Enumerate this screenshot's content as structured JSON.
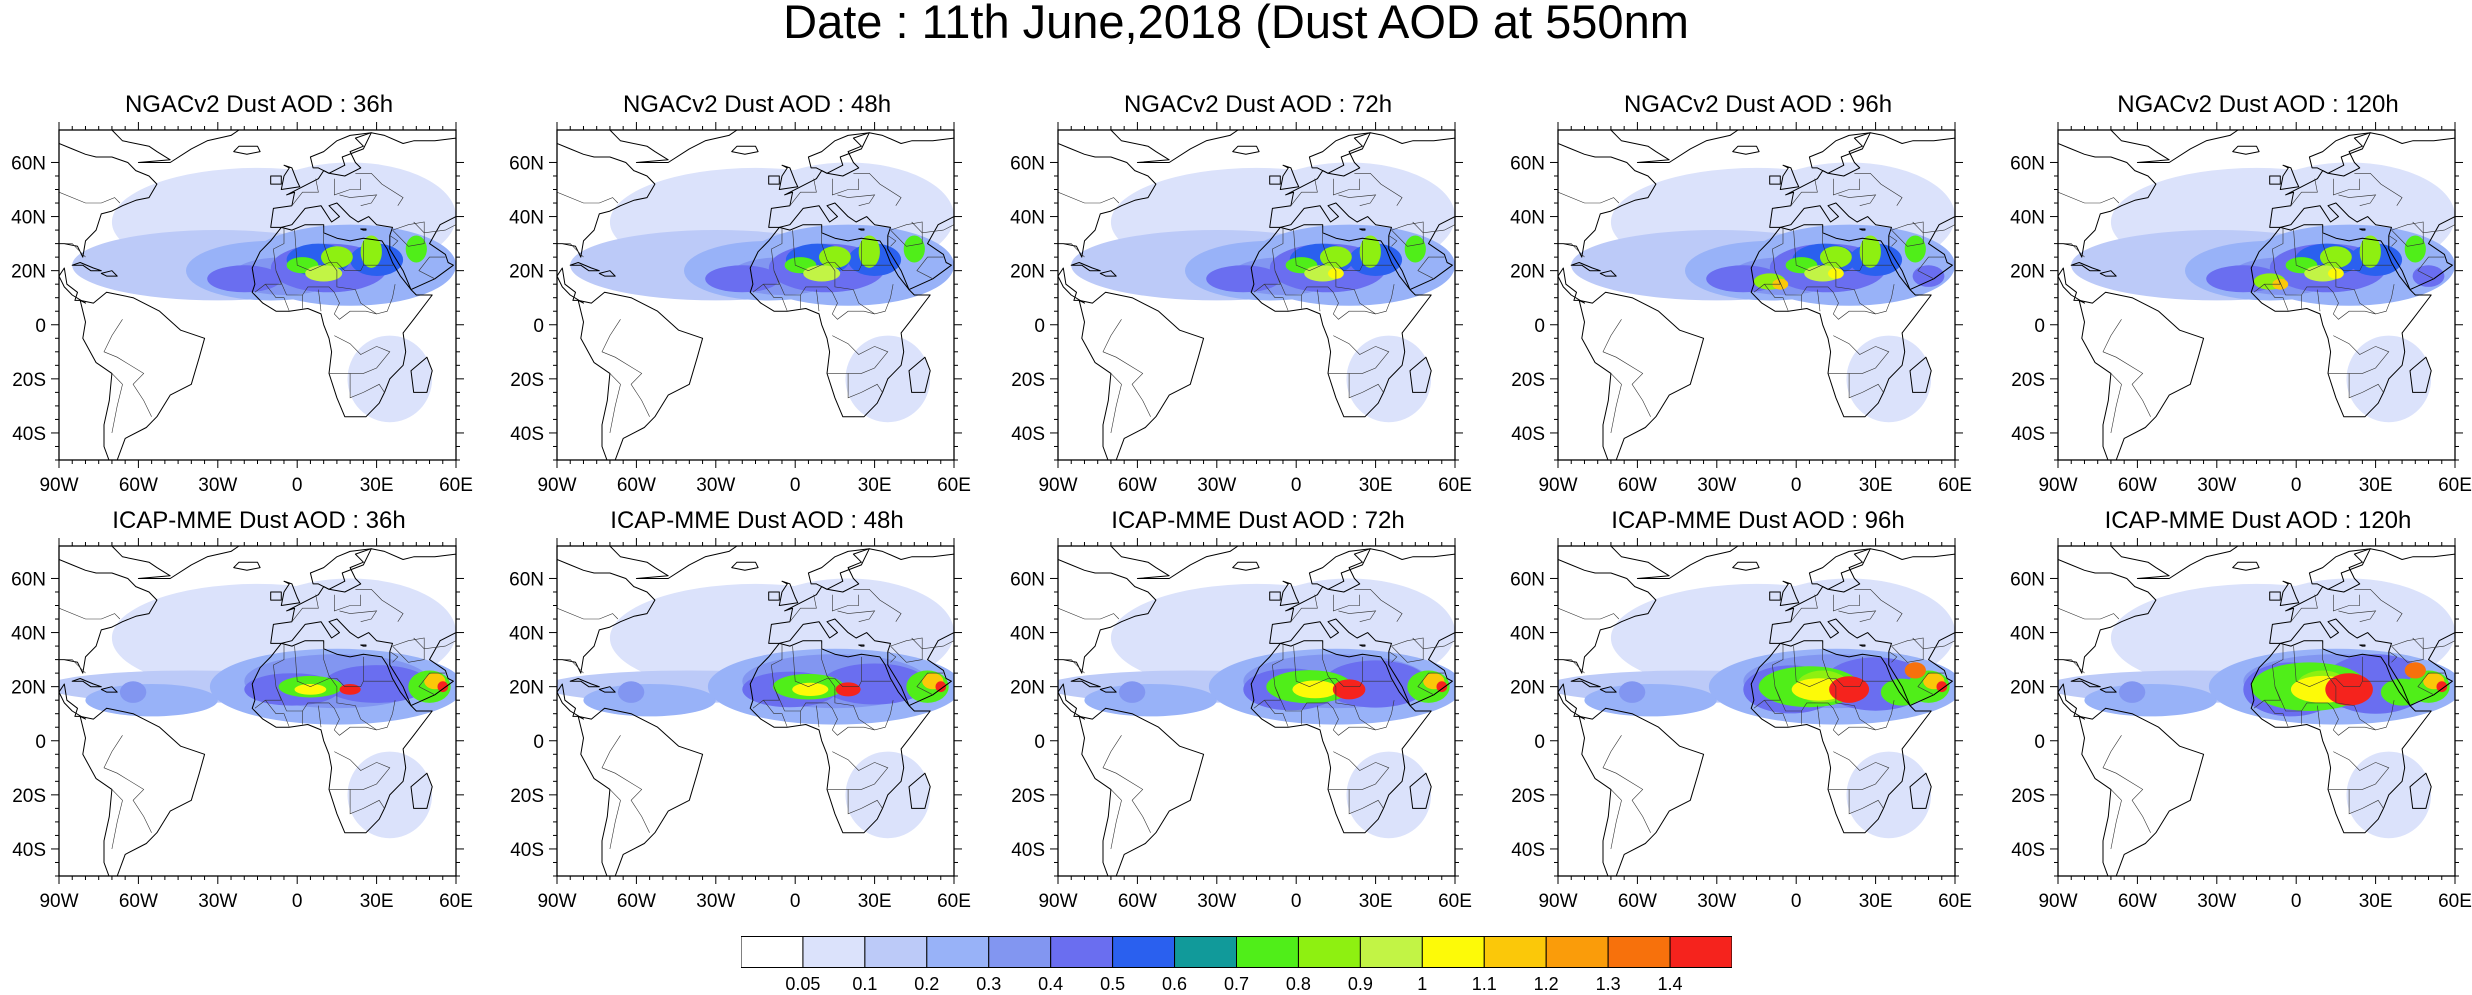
{
  "title": "Date : 11th June,2018 (Dust AOD at 550nm",
  "lon_ticks": [
    "90W",
    "60W",
    "30W",
    "0",
    "30E",
    "60E"
  ],
  "lat_ticks": [
    "60N",
    "40N",
    "20N",
    "0",
    "20S",
    "40S"
  ],
  "panels": [
    {
      "title": "NGACv2 Dust AOD : 36h",
      "model": "NGACv2",
      "lead": 36
    },
    {
      "title": "NGACv2 Dust AOD : 48h",
      "model": "NGACv2",
      "lead": 48
    },
    {
      "title": "NGACv2 Dust AOD : 72h",
      "model": "NGACv2",
      "lead": 72
    },
    {
      "title": "NGACv2 Dust AOD : 96h",
      "model": "NGACv2",
      "lead": 96
    },
    {
      "title": "NGACv2 Dust AOD : 120h",
      "model": "NGACv2",
      "lead": 120
    },
    {
      "title": "ICAP-MME Dust AOD : 36h",
      "model": "ICAP-MME",
      "lead": 36
    },
    {
      "title": "ICAP-MME Dust AOD : 48h",
      "model": "ICAP-MME",
      "lead": 48
    },
    {
      "title": "ICAP-MME Dust AOD : 72h",
      "model": "ICAP-MME",
      "lead": 72
    },
    {
      "title": "ICAP-MME Dust AOD : 96h",
      "model": "ICAP-MME",
      "lead": 96
    },
    {
      "title": "ICAP-MME Dust AOD : 120h",
      "model": "ICAP-MME",
      "lead": 120
    }
  ],
  "colorbar": {
    "labels": [
      "0.05",
      "0.1",
      "0.2",
      "0.3",
      "0.4",
      "0.5",
      "0.6",
      "0.7",
      "0.8",
      "0.9",
      "1",
      "1.1",
      "1.2",
      "1.3",
      "1.4"
    ],
    "colors": [
      "#ffffff",
      "#dbe2fb",
      "#bccaf8",
      "#98b2f8",
      "#8296f1",
      "#6a6ef0",
      "#2a60ef",
      "#119a9a",
      "#50ee19",
      "#8ef011",
      "#c2f445",
      "#fdfa08",
      "#fbc809",
      "#fa9c0a",
      "#f7710c",
      "#f5231d"
    ]
  }
}
